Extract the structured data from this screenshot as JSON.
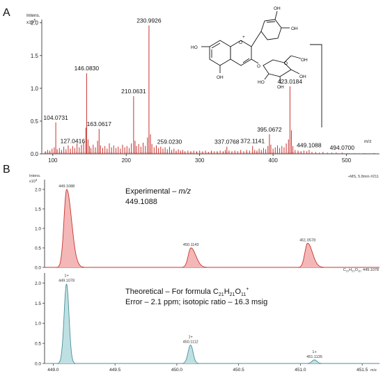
{
  "colors": {
    "ms_red": "#c8322e",
    "ms_fill": "#f4b7b7",
    "theo_blue": "#4a8f98",
    "theo_fill": "#bfe0e3",
    "axis": "#222222"
  },
  "panel_a": {
    "label": "A",
    "y_unit": "Intens.",
    "y_scale": "x10",
    "y_scale_exp": "5",
    "x_unit": "m/z"
  },
  "panel_b": {
    "label": "B",
    "y_unit": "Intens.",
    "y_scale": "x10",
    "y_scale_exp": "4",
    "top_header": "+MS, 5.8min #211",
    "bottom_header_pre": "C",
    "bottom_header_c": "21",
    "bottom_header_mid1": "H",
    "bottom_header_h": "21",
    "bottom_header_mid2": "O",
    "bottom_header_o": "11",
    "bottom_header_post": ", 449.1078",
    "x_unit": "m/z",
    "exp_line1_pre": "Experimental – ",
    "exp_line1_em": "m/z",
    "exp_line2": "449.1088",
    "theo_line1_pre": "Theoretical – For formula C",
    "theo_sub_c": "21",
    "theo_mid_h": "H",
    "theo_sub_h": "21",
    "theo_mid_o": "O",
    "theo_sub_o": "11",
    "theo_sup": "+",
    "theo_line2": "Error – 2.1 ppm; isotopic ratio – 16.3 msig"
  },
  "structure": {
    "atoms": [
      "OH",
      "OH",
      "HO",
      "O",
      "+",
      "OH",
      "O",
      "O",
      "OH",
      "HO",
      "OH",
      "OH"
    ]
  },
  "chart_data": [
    {
      "type": "line",
      "subtype": "mass-spectrum-stick",
      "panel": "A",
      "xlabel": "m/z",
      "ylabel": "Intens. x10^5",
      "xlim": [
        85,
        545
      ],
      "ylim": [
        0,
        2.05
      ],
      "x_ticks": [
        100,
        200,
        300,
        400,
        500
      ],
      "y_ticks": [
        0.0,
        0.5,
        1.0,
        1.5,
        2.0
      ],
      "peak_labels": [
        {
          "mz": 104.0731,
          "text": "104.0731",
          "y": 0.48
        },
        {
          "mz": 127.0416,
          "text": "127.0416",
          "y": 0.12
        },
        {
          "mz": 146.083,
          "text": "146.0830",
          "y": 1.23
        },
        {
          "mz": 163.0617,
          "text": "163.0617",
          "y": 0.38
        },
        {
          "mz": 210.0631,
          "text": "210.0631",
          "y": 0.88
        },
        {
          "mz": 230.9926,
          "text": "230.9926",
          "y": 1.96
        },
        {
          "mz": 259.023,
          "text": "259.0230",
          "y": 0.11
        },
        {
          "mz": 337.0768,
          "text": "337.0768",
          "y": 0.11
        },
        {
          "mz": 372.1141,
          "text": "372.1141",
          "y": 0.12
        },
        {
          "mz": 395.0672,
          "text": "395.0672",
          "y": 0.3
        },
        {
          "mz": 423.0184,
          "text": "423.0184",
          "y": 1.03
        },
        {
          "mz": 449.1088,
          "text": "449.1088",
          "y": 0.06
        },
        {
          "mz": 494.07,
          "text": "494.0700",
          "y": 0.02
        }
      ],
      "peaks": [
        [
          90,
          0.04
        ],
        [
          93,
          0.06
        ],
        [
          96,
          0.05
        ],
        [
          99,
          0.08
        ],
        [
          102,
          0.1
        ],
        [
          104.0731,
          0.48
        ],
        [
          106,
          0.07
        ],
        [
          109,
          0.09
        ],
        [
          112,
          0.06
        ],
        [
          115,
          0.11
        ],
        [
          118,
          0.07
        ],
        [
          121,
          0.13
        ],
        [
          124,
          0.08
        ],
        [
          127.0416,
          0.12
        ],
        [
          130,
          0.09
        ],
        [
          133,
          0.16
        ],
        [
          136,
          0.1
        ],
        [
          139,
          0.14
        ],
        [
          142,
          0.18
        ],
        [
          145,
          0.4
        ],
        [
          146.083,
          1.23
        ],
        [
          148,
          0.22
        ],
        [
          150,
          0.12
        ],
        [
          152,
          0.09
        ],
        [
          155,
          0.14
        ],
        [
          158,
          0.1
        ],
        [
          161,
          0.2
        ],
        [
          163.0617,
          0.38
        ],
        [
          165,
          0.13
        ],
        [
          168,
          0.09
        ],
        [
          171,
          0.12
        ],
        [
          174,
          0.08
        ],
        [
          177,
          0.16
        ],
        [
          180,
          0.1
        ],
        [
          183,
          0.13
        ],
        [
          186,
          0.09
        ],
        [
          189,
          0.11
        ],
        [
          192,
          0.08
        ],
        [
          195,
          0.14
        ],
        [
          198,
          0.1
        ],
        [
          201,
          0.12
        ],
        [
          204,
          0.09
        ],
        [
          207,
          0.16
        ],
        [
          210.0631,
          0.88
        ],
        [
          212,
          0.2
        ],
        [
          214,
          0.12
        ],
        [
          217,
          0.15
        ],
        [
          220,
          0.11
        ],
        [
          223,
          0.17
        ],
        [
          226,
          0.12
        ],
        [
          229,
          0.25
        ],
        [
          230.9926,
          1.96
        ],
        [
          233,
          0.3
        ],
        [
          235,
          0.15
        ],
        [
          238,
          0.1
        ],
        [
          241,
          0.13
        ],
        [
          244,
          0.09
        ],
        [
          247,
          0.11
        ],
        [
          250,
          0.08
        ],
        [
          253,
          0.1
        ],
        [
          256,
          0.07
        ],
        [
          259.023,
          0.11
        ],
        [
          262,
          0.06
        ],
        [
          265,
          0.08
        ],
        [
          268,
          0.05
        ],
        [
          271,
          0.07
        ],
        [
          274,
          0.05
        ],
        [
          277,
          0.06
        ],
        [
          280,
          0.04
        ],
        [
          284,
          0.05
        ],
        [
          288,
          0.04
        ],
        [
          292,
          0.05
        ],
        [
          296,
          0.04
        ],
        [
          300,
          0.05
        ],
        [
          304,
          0.04
        ],
        [
          308,
          0.05
        ],
        [
          312,
          0.03
        ],
        [
          316,
          0.05
        ],
        [
          320,
          0.04
        ],
        [
          324,
          0.04
        ],
        [
          328,
          0.05
        ],
        [
          332,
          0.04
        ],
        [
          335,
          0.06
        ],
        [
          337.0768,
          0.11
        ],
        [
          340,
          0.05
        ],
        [
          344,
          0.04
        ],
        [
          348,
          0.05
        ],
        [
          352,
          0.04
        ],
        [
          356,
          0.06
        ],
        [
          360,
          0.04
        ],
        [
          364,
          0.06
        ],
        [
          368,
          0.05
        ],
        [
          372.1141,
          0.12
        ],
        [
          375,
          0.06
        ],
        [
          378,
          0.05
        ],
        [
          381,
          0.08
        ],
        [
          384,
          0.06
        ],
        [
          387,
          0.09
        ],
        [
          390,
          0.07
        ],
        [
          393,
          0.12
        ],
        [
          395.0672,
          0.3
        ],
        [
          397,
          0.14
        ],
        [
          400,
          0.08
        ],
        [
          403,
          0.1
        ],
        [
          406,
          0.13
        ],
        [
          409,
          0.09
        ],
        [
          412,
          0.12
        ],
        [
          415,
          0.1
        ],
        [
          418,
          0.16
        ],
        [
          421,
          0.22
        ],
        [
          423.0184,
          1.03
        ],
        [
          425,
          0.36
        ],
        [
          427,
          0.12
        ],
        [
          430,
          0.06
        ],
        [
          434,
          0.05
        ],
        [
          438,
          0.04
        ],
        [
          442,
          0.05
        ],
        [
          446,
          0.04
        ],
        [
          449.1088,
          0.06
        ],
        [
          453,
          0.03
        ],
        [
          458,
          0.03
        ],
        [
          463,
          0.02
        ],
        [
          468,
          0.03
        ],
        [
          474,
          0.02
        ],
        [
          480,
          0.02
        ],
        [
          486,
          0.02
        ],
        [
          494.07,
          0.02
        ],
        [
          502,
          0.01
        ],
        [
          512,
          0.01
        ],
        [
          525,
          0.01
        ],
        [
          538,
          0.01
        ]
      ]
    },
    {
      "type": "line",
      "subtype": "mass-spectrum-profile",
      "panel": "B-experimental",
      "xlabel": "m/z",
      "ylabel": "Intens. x10^4",
      "xlim": [
        448.93,
        451.64
      ],
      "ylim": [
        0,
        2.25
      ],
      "y_ticks": [
        0.0,
        0.5,
        1.0,
        1.5,
        2.0
      ],
      "peaks": [
        {
          "mz": 449.1088,
          "height": 2.0,
          "label": "449.1088"
        },
        {
          "mz": 450.1143,
          "height": 0.5,
          "label": "450.1143"
        },
        {
          "mz": 451.0578,
          "height": 0.62,
          "label": "451.0578"
        }
      ]
    },
    {
      "type": "line",
      "subtype": "mass-spectrum-profile",
      "panel": "B-theoretical",
      "xlabel": "m/z",
      "ylabel": "Intens. x10^4",
      "xlim": [
        448.93,
        451.64
      ],
      "ylim": [
        0,
        2.25
      ],
      "x_ticks": [
        449.0,
        449.5,
        450.0,
        450.5,
        451.0,
        451.5
      ],
      "x_tick_labels": [
        "449.0",
        "449.5",
        "450.0",
        "450.5",
        "451.0",
        "451.5"
      ],
      "y_ticks": [
        0.0,
        0.5,
        1.0,
        1.5,
        2.0
      ],
      "peaks": [
        {
          "mz": 449.1078,
          "height": 1.98,
          "charge": "1+",
          "label": "449.1078"
        },
        {
          "mz": 450.1112,
          "height": 0.46,
          "charge": "1+",
          "label": "450.1112"
        },
        {
          "mz": 451.1135,
          "height": 0.09,
          "charge": "1+",
          "label": "451.1135"
        }
      ]
    }
  ]
}
